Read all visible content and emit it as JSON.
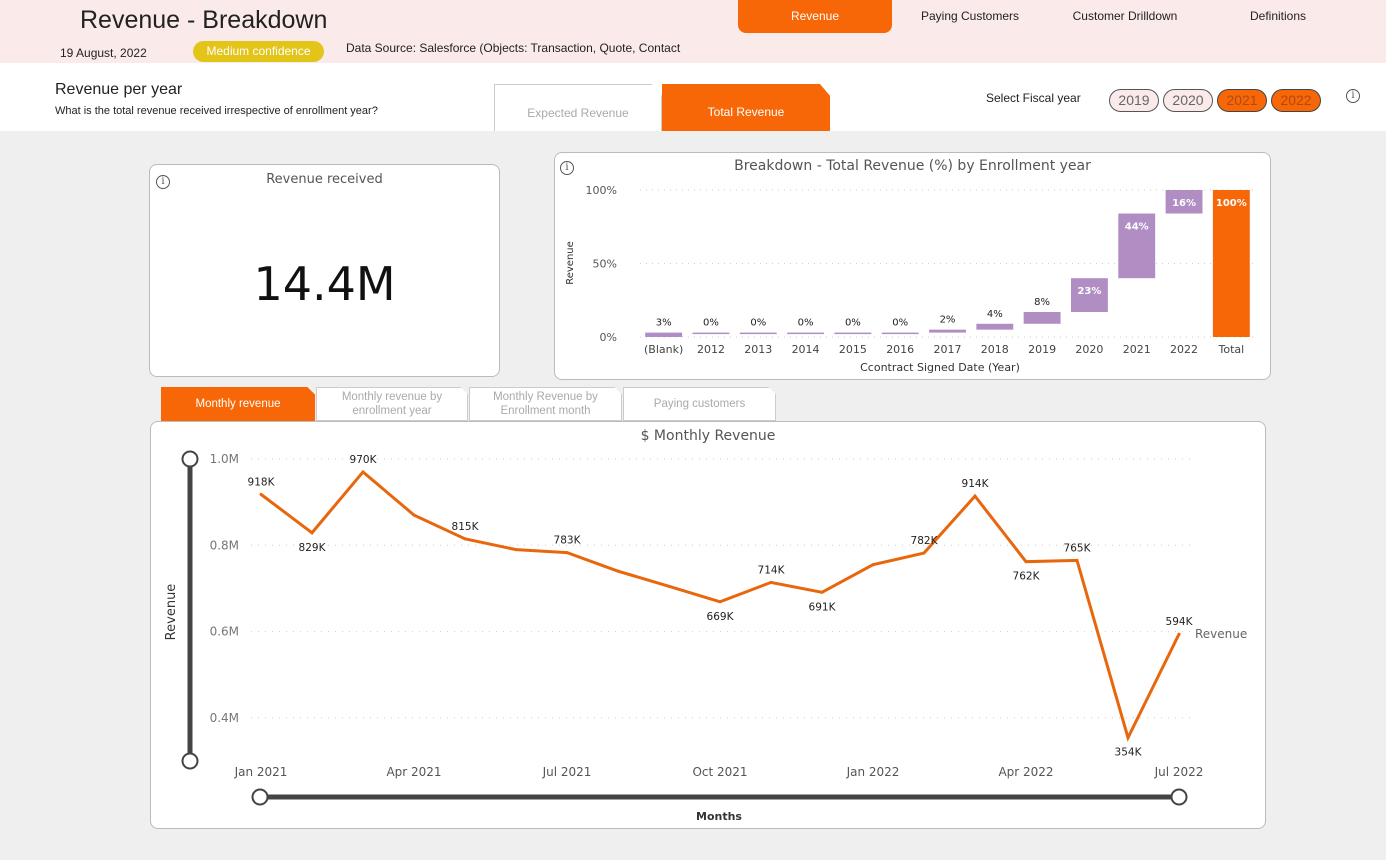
{
  "header": {
    "title": "Revenue - Breakdown",
    "date": "19 August, 2022",
    "confidence_badge": "Medium confidence",
    "data_source": "Data Source: Salesforce (Objects: Transaction, Quote, Contact",
    "nav": [
      {
        "label": "Revenue",
        "active": true
      },
      {
        "label": "Paying Customers",
        "active": false
      },
      {
        "label": "Customer Drilldown",
        "active": false
      },
      {
        "label": "Definitions",
        "active": false
      }
    ],
    "colors": {
      "accent": "#f76708",
      "badge": "#e3c51a",
      "header_bg": "#fbeaea"
    }
  },
  "subheader": {
    "title": "Revenue per year",
    "description": "What is the total revenue received irrespective of enrollment year?",
    "toggles": [
      {
        "label": "Expected Revenue",
        "active": false
      },
      {
        "label": "Total Revenue",
        "active": true
      }
    ],
    "fiscal_year_label": "Select Fiscal year",
    "fiscal_years": [
      {
        "label": "2019",
        "selected": false
      },
      {
        "label": "2020",
        "selected": false
      },
      {
        "label": "2021",
        "selected": true
      },
      {
        "label": "2022",
        "selected": true
      }
    ],
    "info_icon": "info-icon"
  },
  "kpi": {
    "title": "Revenue received",
    "value": "14.4M",
    "info_icon": "info-icon"
  },
  "tabs": [
    {
      "label": "Monthly revenue",
      "active": true
    },
    {
      "label": "Monthly revenue by enrollment year",
      "active": false
    },
    {
      "label": "Monthly Revenue by Enrollment month",
      "active": false
    },
    {
      "label": "Paying customers",
      "active": false
    }
  ],
  "chart_data": [
    {
      "type": "bar",
      "subtype": "waterfall",
      "title": "Breakdown - Total Revenue (%) by Enrollment year",
      "xlabel": "Ccontract Signed Date (Year)",
      "ylabel": "Revenue",
      "ylim": [
        0,
        100
      ],
      "yticks": [
        "0%",
        "50%",
        "100%"
      ],
      "categories": [
        "(Blank)",
        "2012",
        "2013",
        "2014",
        "2015",
        "2016",
        "2017",
        "2018",
        "2019",
        "2020",
        "2021",
        "2022",
        "Total"
      ],
      "values": [
        3,
        0,
        0,
        0,
        0,
        0,
        2,
        4,
        8,
        23,
        44,
        16,
        100
      ],
      "labels": [
        "3%",
        "0%",
        "0%",
        "0%",
        "0%",
        "0%",
        "2%",
        "4%",
        "8%",
        "23%",
        "44%",
        "16%",
        "100%"
      ],
      "colors": {
        "increase": "#b08ec4",
        "total": "#f76708"
      },
      "grid": true
    },
    {
      "type": "line",
      "title": "$ Monthly Revenue",
      "xlabel": "Months",
      "ylabel": "Revenue",
      "ylim": [
        0.3,
        1.0
      ],
      "yticks": [
        "0.4M",
        "0.6M",
        "0.8M",
        "1.0M"
      ],
      "ytick_values": [
        0.4,
        0.6,
        0.8,
        1.0
      ],
      "x": [
        "Jan 2021",
        "Feb 2021",
        "Mar 2021",
        "Apr 2021",
        "May 2021",
        "Jun 2021",
        "Jul 2021",
        "Aug 2021",
        "Sep 2021",
        "Oct 2021",
        "Nov 2021",
        "Dec 2021",
        "Jan 2022",
        "Feb 2022",
        "Mar 2022",
        "Apr 2022",
        "May 2022",
        "Jun 2022",
        "Jul 2022"
      ],
      "xticks": [
        "Jan 2021",
        "Apr 2021",
        "Jul 2021",
        "Oct 2021",
        "Jan 2022",
        "Apr 2022",
        "Jul 2022"
      ],
      "series": [
        {
          "name": "Revenue",
          "values": [
            918,
            829,
            970,
            870,
            815,
            790,
            783,
            740,
            705,
            669,
            714,
            691,
            755,
            782,
            914,
            762,
            765,
            354,
            594
          ],
          "labels": [
            "918K",
            "829K",
            "970K",
            "",
            "815K",
            "",
            "783K",
            "",
            "",
            "669K",
            "714K",
            "691K",
            "",
            "782K",
            "914K",
            "762K",
            "765K",
            "354K",
            "594K"
          ],
          "color": "#e8670c"
        }
      ],
      "value_unit": "K",
      "grid": true,
      "legend": "end-of-line"
    }
  ]
}
